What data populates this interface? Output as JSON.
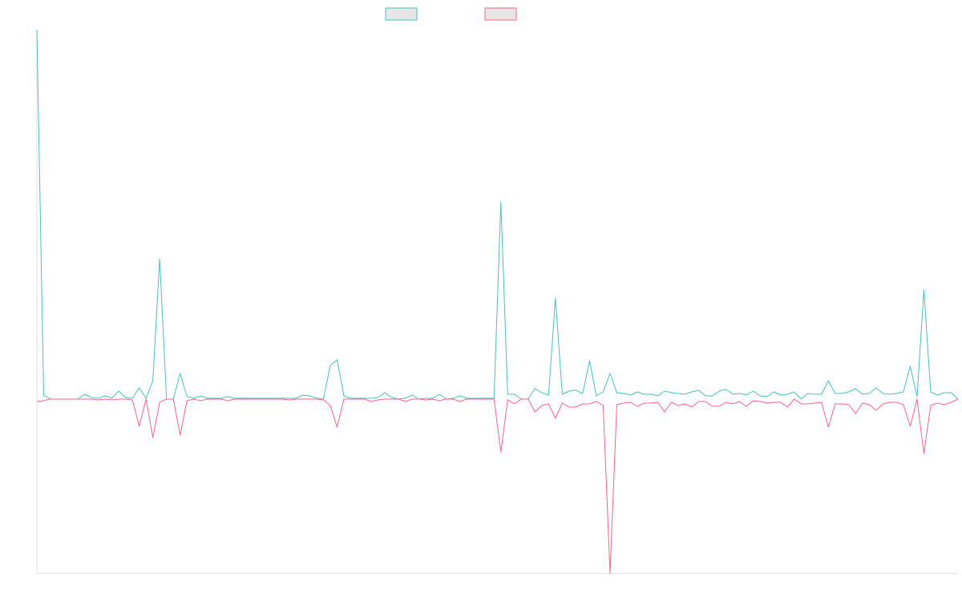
{
  "chart_data": {
    "type": "line",
    "legend": "top",
    "categories": [
      null,
      null,
      null,
      null,
      null,
      null,
      null,
      null,
      null,
      null,
      null,
      null,
      null,
      null,
      null,
      null,
      null,
      null,
      null,
      null,
      null,
      null,
      null,
      null,
      null,
      null,
      null,
      null,
      null,
      null,
      null,
      null,
      null,
      null,
      null,
      null,
      null,
      null,
      null,
      null,
      null,
      null,
      null,
      null,
      null,
      null,
      null,
      null,
      null,
      null,
      null,
      null,
      null,
      null,
      null,
      null,
      null,
      null,
      null,
      null,
      null,
      null,
      null,
      null,
      null,
      null,
      null,
      null,
      null,
      null,
      null,
      null,
      null,
      null,
      null,
      null,
      null,
      null,
      null,
      null,
      null,
      null,
      null,
      null,
      null,
      null,
      null,
      null,
      null,
      null,
      null,
      null,
      null,
      null,
      null,
      null,
      null,
      null,
      null,
      null,
      null,
      null,
      null,
      null,
      null,
      null,
      null,
      null,
      null,
      null,
      null,
      null,
      null,
      null,
      null,
      null,
      null,
      null,
      null,
      null,
      null,
      null,
      null,
      null,
      null,
      null,
      null,
      null,
      null,
      null,
      null,
      null,
      null,
      null,
      null,
      null
    ],
    "ylim": [
      -217,
      461
    ],
    "series": [
      {
        "color": "#4bc0c0",
        "values": [
          461,
          5,
          0,
          0,
          0,
          0,
          0,
          6,
          2,
          1,
          4,
          1,
          10,
          2,
          1,
          14,
          1,
          23,
          175,
          0,
          0,
          32,
          3,
          1,
          4,
          1,
          1,
          1,
          3,
          1,
          1,
          1,
          1,
          1,
          1,
          1,
          1,
          1,
          1,
          5,
          4,
          1,
          0,
          42,
          49,
          4,
          1,
          1,
          1,
          1,
          2,
          8,
          2,
          0,
          1,
          5,
          0,
          1,
          1,
          6,
          0,
          1,
          4,
          1,
          1,
          1,
          1,
          1,
          246,
          6,
          6,
          0,
          0,
          13,
          8,
          5,
          126,
          6,
          10,
          11,
          7,
          48,
          4,
          9,
          32,
          8,
          7,
          5,
          9,
          6,
          6,
          4,
          10,
          8,
          7,
          6,
          9,
          11,
          4,
          4,
          10,
          12,
          6,
          7,
          5,
          10,
          4,
          3,
          9,
          5,
          6,
          9,
          0,
          7,
          6,
          6,
          23,
          7,
          7,
          9,
          13,
          6,
          7,
          14,
          7,
          6,
          7,
          9,
          41,
          3,
          136,
          9,
          5,
          8,
          8,
          0
        ]
      },
      {
        "color": "#ff6384",
        "values": [
          -3,
          -2,
          0,
          0,
          0,
          0,
          0,
          0,
          0,
          -1,
          0,
          -1,
          0,
          0,
          -1,
          -34,
          0,
          -48,
          -4,
          0,
          0,
          -45,
          -2,
          0,
          -2,
          0,
          0,
          0,
          -2,
          0,
          0,
          0,
          0,
          0,
          0,
          0,
          0,
          -1,
          0,
          0,
          0,
          0,
          -1,
          -8,
          -35,
          0,
          0,
          0,
          0,
          -3,
          -1,
          0,
          0,
          0,
          -3,
          0,
          0,
          -1,
          0,
          -2,
          0,
          0,
          -3,
          0,
          0,
          0,
          0,
          0,
          -66,
          -1,
          -6,
          0,
          0,
          -16,
          -8,
          -6,
          -24,
          -5,
          -10,
          -10,
          -6,
          -6,
          -3,
          -8,
          -217,
          -7,
          -5,
          -4,
          -9,
          -5,
          -5,
          -4,
          -16,
          -4,
          -8,
          -6,
          -10,
          -3,
          -3,
          -9,
          -9,
          -4,
          -6,
          -3,
          -9,
          -2,
          -3,
          -5,
          -4,
          -4,
          -10,
          0,
          -6,
          -6,
          -5,
          -4,
          -35,
          -6,
          -6,
          -7,
          -18,
          -5,
          -7,
          -14,
          -6,
          -4,
          -4,
          -7,
          -34,
          0,
          -68,
          -8,
          -5,
          -7,
          -4,
          0
        ]
      }
    ]
  }
}
